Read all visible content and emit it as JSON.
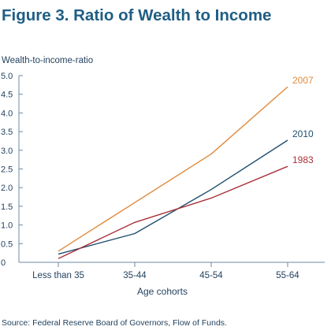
{
  "figure_title": "Figure 3. Ratio of Wealth to Income",
  "source_note": "Source: Federal Reserve Board of Governors, Flow of Funds.",
  "colors": {
    "title": "#1f5e84",
    "text": "#1f3f5c",
    "axis": "#6e8aa6"
  },
  "chart_data": {
    "type": "line",
    "xlabel": "Age cohorts",
    "ylabel": "Wealth-to-income-ratio",
    "categories": [
      "Less than 35",
      "35-44",
      "45-54",
      "55-64"
    ],
    "ylim": [
      0,
      5
    ],
    "y_ticks": [
      "0",
      "0.5",
      "1.0",
      "1.5",
      "2.0",
      "2.5",
      "3.0",
      "3.5",
      "4.0",
      "4.5",
      "5.0"
    ],
    "grid": false,
    "legend": "labels at line ends",
    "series": [
      {
        "name": "2007",
        "values": [
          0.3,
          1.6,
          2.9,
          4.7
        ],
        "color": "#e08a3c"
      },
      {
        "name": "2010",
        "values": [
          0.22,
          0.77,
          1.95,
          3.27
        ],
        "color": "#1f4e6e"
      },
      {
        "name": "1983",
        "values": [
          0.1,
          1.07,
          1.72,
          2.57
        ],
        "color": "#a8323a"
      }
    ]
  }
}
